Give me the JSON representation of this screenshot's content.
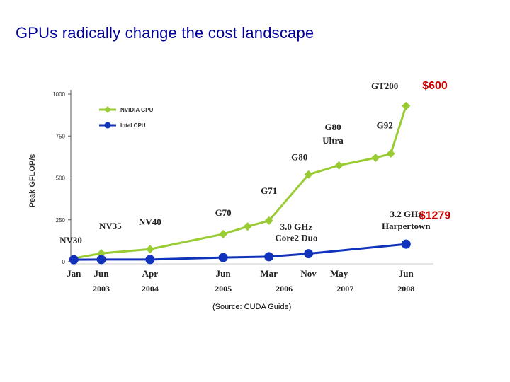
{
  "slide": {
    "title": "GPUs radically change the cost landscape",
    "source": "(Source: CUDA Guide)"
  },
  "chart_data": {
    "type": "line",
    "ylabel": "Peak GFLOP/s",
    "ylim": [
      0,
      1000
    ],
    "yticks": [
      0,
      250,
      500,
      750,
      1000
    ],
    "grid": false,
    "legend_position": "top-left",
    "x_range": [
      2002.95,
      2008.9
    ],
    "x_ticks": [
      {
        "label": "Jan",
        "x": 2003.0
      },
      {
        "label": "Jun",
        "x": 2003.45
      },
      {
        "label": "Apr",
        "x": 2004.25
      },
      {
        "label": "Jun",
        "x": 2005.45
      },
      {
        "label": "Mar",
        "x": 2006.2
      },
      {
        "label": "Nov",
        "x": 2006.85
      },
      {
        "label": "May",
        "x": 2007.35
      },
      {
        "label": "Jun",
        "x": 2008.45
      }
    ],
    "year_labels": [
      {
        "label": "2003",
        "x": 2003.45
      },
      {
        "label": "2004",
        "x": 2004.25
      },
      {
        "label": "2005",
        "x": 2005.45
      },
      {
        "label": "2006",
        "x": 2006.45
      },
      {
        "label": "2007",
        "x": 2007.45
      },
      {
        "label": "2008",
        "x": 2008.45
      }
    ],
    "series": [
      {
        "name": "NVIDIA GPU",
        "color": "#99cc33",
        "marker": "diamond",
        "points": [
          {
            "x": 2003.0,
            "y": 20
          },
          {
            "x": 2003.45,
            "y": 50
          },
          {
            "x": 2004.25,
            "y": 75
          },
          {
            "x": 2005.45,
            "y": 165
          },
          {
            "x": 2005.85,
            "y": 210
          },
          {
            "x": 2006.2,
            "y": 245
          },
          {
            "x": 2006.85,
            "y": 520
          },
          {
            "x": 2007.35,
            "y": 575
          },
          {
            "x": 2007.95,
            "y": 620
          },
          {
            "x": 2008.2,
            "y": 645
          },
          {
            "x": 2008.45,
            "y": 930
          }
        ]
      },
      {
        "name": "Intel CPU",
        "color": "#1133bb",
        "marker": "circle",
        "points": [
          {
            "x": 2003.0,
            "y": 12
          },
          {
            "x": 2003.45,
            "y": 13
          },
          {
            "x": 2004.25,
            "y": 13
          },
          {
            "x": 2005.45,
            "y": 25
          },
          {
            "x": 2006.2,
            "y": 30
          },
          {
            "x": 2006.85,
            "y": 48
          },
          {
            "x": 2008.45,
            "y": 105
          }
        ]
      }
    ],
    "annotations": [
      {
        "label": "NV30",
        "x": 2002.95,
        "y": 110
      },
      {
        "label": "NV35",
        "x": 2003.6,
        "y": 195
      },
      {
        "label": "NV40",
        "x": 2004.25,
        "y": 220
      },
      {
        "label": "G70",
        "x": 2005.45,
        "y": 275
      },
      {
        "label": "G71",
        "x": 2006.2,
        "y": 405
      },
      {
        "label": "G80",
        "x": 2006.7,
        "y": 605
      },
      {
        "label": "G80",
        "x": 2007.25,
        "y": 785
      },
      {
        "label": "Ultra",
        "x": 2007.25,
        "y": 705
      },
      {
        "label": "G92",
        "x": 2008.1,
        "y": 795
      },
      {
        "label": "GT200",
        "x": 2008.1,
        "y": 1030
      },
      {
        "label": "3.0 GHz",
        "x": 2006.65,
        "y": 190
      },
      {
        "label": "Core2 Duo",
        "x": 2006.65,
        "y": 125
      },
      {
        "label": "3.2 GHz",
        "x": 2008.45,
        "y": 265
      },
      {
        "label": "Harpertown",
        "x": 2008.45,
        "y": 195
      }
    ],
    "callouts": [
      {
        "label": "$600",
        "color": "#cc0000",
        "x": 2008.9,
        "y": 1030
      },
      {
        "label": "$1279",
        "color": "#cc0000",
        "x": 2008.9,
        "y": 255
      }
    ]
  }
}
